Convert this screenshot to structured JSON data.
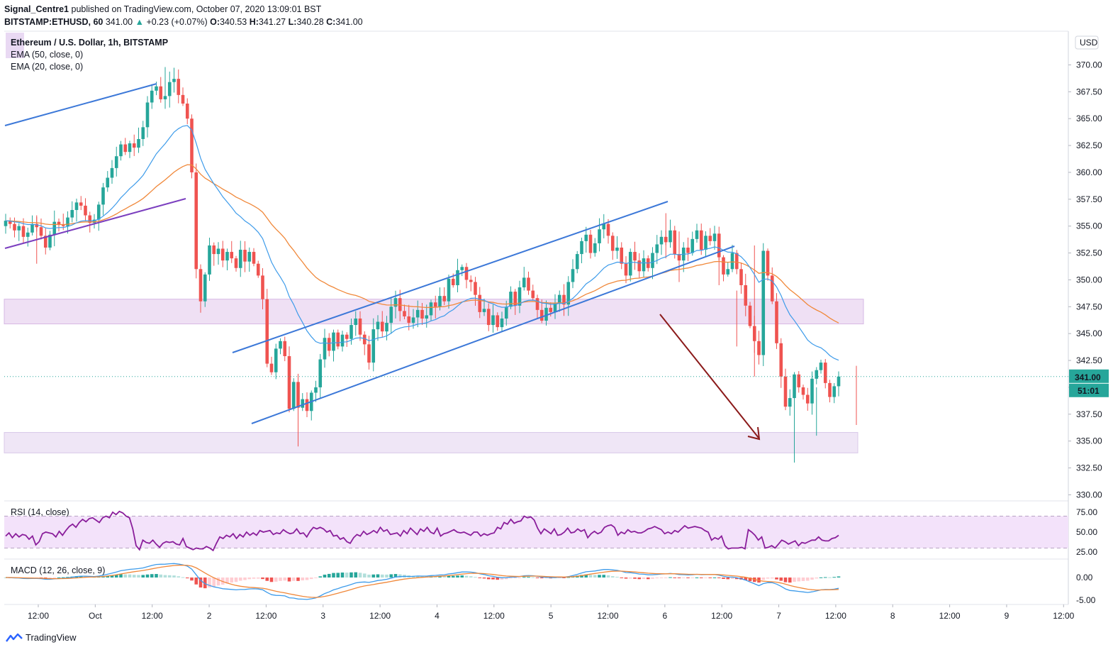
{
  "header": {
    "line1_author": "Signal_Centre1",
    "line1_rest": "published on TradingView.com, October 07, 2020 13:09:01 BST",
    "symbol": "BITSTAMP:ETHUSD, 60",
    "last": "341.00",
    "change": "+0.23 (+0.07%)",
    "o_label": "O:",
    "o": "340.53",
    "h_label": "H:",
    "h": "341.27",
    "l_label": "L:",
    "l": "340.28",
    "c_label": "C:",
    "c": "341.00"
  },
  "legend": {
    "title": "Ethereum / U.S. Dollar, 1h, BITSTAMP",
    "ema50": "EMA (50, close, 0)",
    "ema20": "EMA (20, close, 0)"
  },
  "rsi_label": "RSI (14, close)",
  "macd_label": "MACD (12, 26, close, 9)",
  "currency": "USD",
  "price_badge": "341.00",
  "countdown_badge": "51:01",
  "footer": {
    "brand": "TradingView"
  },
  "colors": {
    "up": "#26a69a",
    "down": "#ef5350",
    "ema20": "#3d9bea",
    "ema50": "#f0883a",
    "channel": "#3c78d8",
    "support_line": "#7b3fbf",
    "arrow": "#8b1a1a",
    "zone": "#e9d5f0",
    "rsi_line": "#8a1e9b",
    "rsi_bg": "#f3e2fa"
  },
  "chart_data": {
    "type": "candlestick",
    "timeframe": "1h",
    "ylim": [
      329.5,
      373
    ],
    "y_ticks": [
      "370.00",
      "367.50",
      "365.00",
      "362.50",
      "360.00",
      "357.50",
      "355.00",
      "352.50",
      "350.00",
      "347.50",
      "345.00",
      "342.50",
      "340.00",
      "337.50",
      "335.00",
      "332.50",
      "330.00"
    ],
    "x_ticks": [
      "12:00",
      "Oct",
      "12:00",
      "2",
      "12:00",
      "3",
      "12:00",
      "4",
      "12:00",
      "5",
      "12:00",
      "6",
      "12:00",
      "7",
      "12:00",
      "8",
      "12:00",
      "9",
      "12:00"
    ],
    "rsi": {
      "ticks": [
        "75.00",
        "50.00",
        "25.00"
      ],
      "bands": [
        70,
        30
      ],
      "values": [
        45,
        49,
        43,
        48,
        44,
        47,
        46,
        41,
        45,
        34,
        38,
        48,
        50,
        49,
        48,
        44,
        51,
        46,
        52,
        57,
        60,
        56,
        62,
        66,
        63,
        67,
        68,
        65,
        62,
        68,
        70,
        68,
        75,
        72,
        76,
        74,
        70,
        68,
        54,
        33,
        28,
        40,
        37,
        36,
        40,
        35,
        31,
        36,
        38,
        37,
        38,
        35,
        34,
        42,
        32,
        30,
        28,
        30,
        29,
        29,
        32,
        30,
        27,
        36,
        44,
        42,
        46,
        44,
        48,
        42,
        47,
        44,
        50,
        46,
        49,
        46,
        52,
        50,
        51,
        52,
        47,
        49,
        48,
        53,
        50,
        48,
        49,
        54,
        48,
        49,
        44,
        51,
        56,
        54,
        56,
        54,
        50,
        52,
        45,
        46,
        41,
        43,
        38,
        36,
        43,
        47,
        45,
        51,
        47,
        49,
        52,
        49,
        56,
        51,
        53,
        47,
        48,
        49,
        45,
        52,
        48,
        55,
        51,
        47,
        54,
        51,
        56,
        50,
        48,
        55,
        45,
        48,
        49,
        51,
        53,
        50,
        49,
        50,
        48,
        46,
        50,
        50,
        45,
        48,
        46,
        48,
        49,
        56,
        54,
        62,
        60,
        66,
        61,
        63,
        64,
        70,
        68,
        69,
        65,
        55,
        48,
        54,
        51,
        48,
        54,
        46,
        47,
        50,
        55,
        49,
        50,
        54,
        51,
        53,
        43,
        48,
        51,
        48,
        50,
        56,
        58,
        59,
        56,
        46,
        50,
        48,
        53,
        50,
        51,
        49,
        49,
        51,
        54,
        55,
        57,
        55,
        53,
        48,
        50,
        48,
        52,
        50,
        54,
        58,
        55,
        56,
        57,
        56,
        55,
        52,
        50,
        40,
        43,
        41,
        45,
        33,
        29,
        30,
        30,
        30,
        31,
        29,
        53,
        50,
        46,
        40,
        44,
        30,
        31,
        33,
        30,
        35,
        40,
        38,
        35,
        37,
        39,
        33,
        37,
        36,
        38,
        40,
        40,
        44,
        40,
        39,
        39,
        42,
        43,
        46
      ]
    },
    "macd": {
      "ticks": [
        "0.00",
        "-5.00"
      ]
    }
  }
}
